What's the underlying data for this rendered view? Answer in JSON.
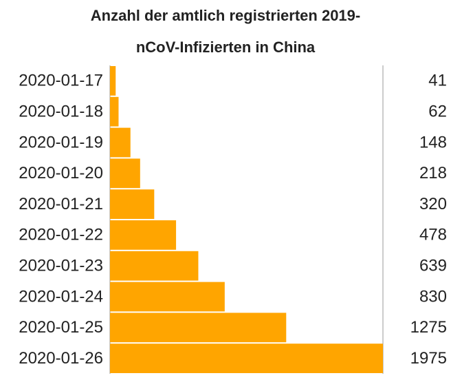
{
  "chart_data": {
    "type": "bar",
    "orientation": "horizontal",
    "title": "Anzahl der amtlich registrierten 2019-nCoV-Infizierten in China",
    "categories": [
      "2020-01-17",
      "2020-01-18",
      "2020-01-19",
      "2020-01-20",
      "2020-01-21",
      "2020-01-22",
      "2020-01-23",
      "2020-01-24",
      "2020-01-25",
      "2020-01-26"
    ],
    "values": [
      41,
      62,
      148,
      218,
      320,
      478,
      639,
      830,
      1275,
      1975
    ],
    "color": "#ffa500",
    "xlim": [
      0,
      1975
    ]
  }
}
